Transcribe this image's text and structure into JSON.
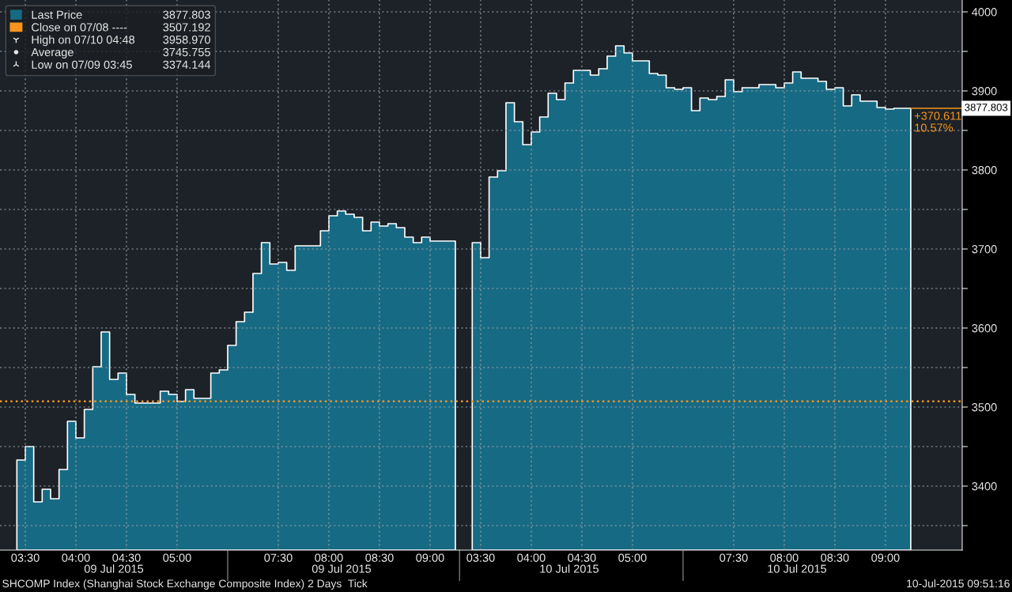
{
  "chart_data": {
    "type": "area",
    "categories": [
      null,
      null,
      null,
      "03:30",
      null,
      null,
      null,
      null,
      null,
      "04:00",
      null,
      null,
      null,
      null,
      null,
      "04:30",
      null,
      null,
      null,
      null,
      null,
      "05:00",
      null,
      null,
      null,
      null,
      null,
      null,
      null,
      null,
      null,
      null,
      null,
      "07:30",
      null,
      null,
      null,
      null,
      null,
      "08:00",
      null,
      null,
      null,
      null,
      null,
      "08:30",
      null,
      null,
      null,
      null,
      null,
      "09:00",
      null,
      null,
      null,
      null,
      null,
      "03:30",
      null,
      null,
      null,
      null,
      null,
      "04:00",
      null,
      null,
      null,
      null,
      null,
      "04:30",
      null,
      null,
      null,
      null,
      null,
      "05:00",
      null,
      null,
      null,
      null,
      null,
      null,
      null,
      null,
      null,
      null,
      null,
      "07:30",
      null,
      null,
      null,
      null,
      null,
      "08:00",
      null,
      null,
      null,
      null,
      null,
      "08:30",
      null,
      null,
      null,
      null,
      null,
      "09:00",
      null,
      null,
      null
    ],
    "series": [
      {
        "name": "Last Price",
        "color": "#176a84",
        "values": [
          null,
          null,
          3433,
          3450,
          3380,
          3396,
          3384,
          3421,
          3482,
          3461,
          3497,
          3551,
          3595,
          3535,
          3543,
          3516,
          3505,
          3505,
          3505,
          3520,
          3516,
          3507,
          3522,
          3511,
          3511,
          3543,
          3547,
          3578,
          3608,
          3620,
          3669,
          3708,
          3681,
          3683,
          3673,
          3704,
          3704,
          3704,
          3723,
          3742,
          3748,
          3744,
          3740,
          3723,
          3734,
          3729,
          3732,
          3727,
          3715,
          3708,
          3715,
          3710,
          3710,
          3710,
          3710,
          null,
          3708,
          3689,
          3791,
          3799,
          3885,
          3861,
          3832,
          3848,
          3867,
          3897,
          3889,
          3910,
          3926,
          3926,
          3920,
          3928,
          3944,
          3957,
          3948,
          3938,
          3938,
          3922,
          3920,
          3904,
          3902,
          3904,
          3875,
          3891,
          3889,
          3893,
          3914,
          3899,
          3904,
          3904,
          3908,
          3908,
          3904,
          3910,
          3924,
          3916,
          3916,
          3912,
          3902,
          3904,
          3881,
          3895,
          3887,
          3887,
          3879,
          3877,
          3878,
          3878,
          3878
        ]
      }
    ],
    "ylim": [
      3319,
      4015
    ],
    "yticks": [
      {
        "value": 3350,
        "label": null
      },
      3400,
      {
        "value": 3450,
        "label": null
      },
      3500,
      {
        "value": 3550,
        "label": null
      },
      3600,
      {
        "value": 3650,
        "label": null
      },
      3700,
      {
        "value": 3750,
        "label": null
      },
      3800,
      {
        "value": 3850,
        "label": null
      },
      3900,
      {
        "value": 3950,
        "label": null
      },
      4000
    ],
    "ref_lines": [
      {
        "axis": "y",
        "value": 3507.192,
        "label": "Close on 07/08 ----",
        "color": "#f7941d",
        "line_style": "dotted"
      }
    ],
    "grid": true,
    "legend": "top left",
    "annotations": [
      "3877.803",
      "3507.192",
      "High on 07/10 04:48",
      "3958.970",
      "Average",
      "3745.755",
      "Low on 07/09 03:45",
      "3374.144",
      "+370.611",
      "10.57%",
      "3877.803",
      "09 Jul 2015",
      "09 Jul 2015",
      "10 Jul 2015",
      "10 Jul 2015",
      "SHCOMP Index (Shanghai Stock Exchange Composite Index) 2 Days  Tick",
      "10-Jul-2015 09:51:16"
    ]
  }
}
